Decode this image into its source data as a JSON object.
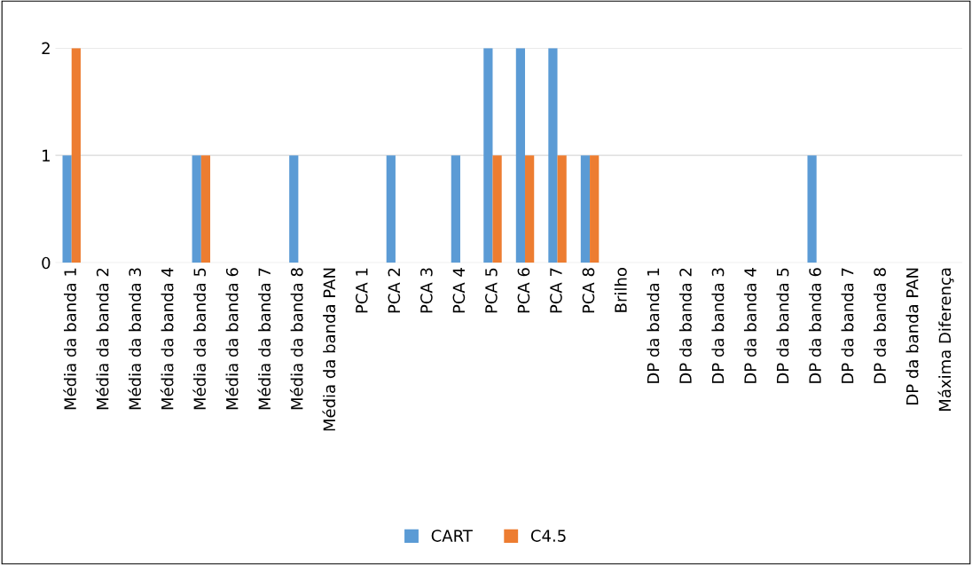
{
  "chart_data": {
    "type": "bar",
    "categories": [
      "Média da banda 1",
      "Média da banda 2",
      "Média da banda 3",
      "Média da banda 4",
      "Média da banda 5",
      "Média da banda 6",
      "Média da banda 7",
      "Média da banda 8",
      "Média da banda PAN",
      "PCA 1",
      "PCA 2",
      "PCA 3",
      "PCA 4",
      "PCA 5",
      "PCA 6",
      "PCA 7",
      "PCA 8",
      "Brilho",
      "DP da banda 1",
      "DP da banda 2",
      "DP da banda 3",
      "DP da banda 4",
      "DP da banda 5",
      "DP da banda 6",
      "DP da banda 7",
      "DP da banda 8",
      "DP da banda PAN",
      "Máxima Diferença"
    ],
    "series": [
      {
        "name": "CART",
        "color": "#5b9bd5",
        "values": [
          1,
          0,
          0,
          0,
          1,
          0,
          0,
          1,
          0,
          0,
          1,
          0,
          1,
          2,
          2,
          2,
          1,
          0,
          0,
          0,
          0,
          0,
          0,
          1,
          0,
          0,
          0,
          0
        ]
      },
      {
        "name": "C4.5",
        "color": "#ed7d31",
        "values": [
          2,
          0,
          0,
          0,
          1,
          0,
          0,
          0,
          0,
          0,
          0,
          0,
          0,
          1,
          1,
          1,
          1,
          0,
          0,
          0,
          0,
          0,
          0,
          0,
          0,
          0,
          0,
          0
        ]
      }
    ],
    "ylim": [
      0,
      2
    ],
    "yticks": [
      0,
      1,
      2
    ],
    "grid": "y",
    "legend": "bottom"
  }
}
